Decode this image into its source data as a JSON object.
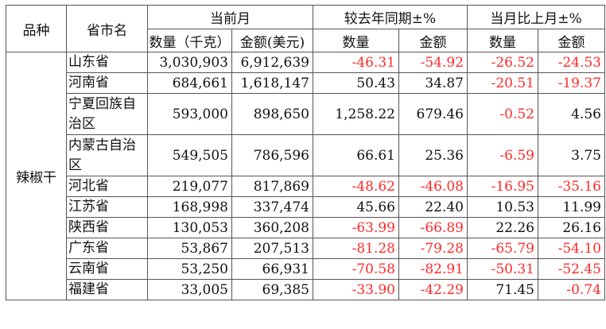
{
  "header": {
    "category_label": "品种",
    "province_label": "省市名",
    "group_current": "当前月",
    "group_yoy": "较去年同期±%",
    "group_mom": "当月比上月±%",
    "sub_qty_kg": "数量（千克）",
    "sub_amt_usd": "金额(美元)",
    "sub_qty": "数量",
    "sub_amt": "金额"
  },
  "category": "辣椒干",
  "rows": [
    {
      "province": "山东省",
      "qty": "3,030,903",
      "amt": "6,912,639",
      "yoy_qty": "-46.31",
      "yoy_amt": "-54.92",
      "mom_qty": "-26.52",
      "mom_amt": "-24.53"
    },
    {
      "province": "河南省",
      "qty": "684,661",
      "amt": "1,618,147",
      "yoy_qty": "50.43",
      "yoy_amt": "34.87",
      "mom_qty": "-20.51",
      "mom_amt": "-19.37"
    },
    {
      "province": "宁夏回族自治区",
      "qty": "593,000",
      "amt": "898,650",
      "yoy_qty": "1,258.22",
      "yoy_amt": "679.46",
      "mom_qty": "-0.52",
      "mom_amt": "4.56"
    },
    {
      "province": "内蒙古自治区",
      "qty": "549,505",
      "amt": "786,596",
      "yoy_qty": "66.61",
      "yoy_amt": "25.36",
      "mom_qty": "-6.59",
      "mom_amt": "3.75"
    },
    {
      "province": "河北省",
      "qty": "219,077",
      "amt": "817,869",
      "yoy_qty": "-48.62",
      "yoy_amt": "-46.08",
      "mom_qty": "-16.95",
      "mom_amt": "-35.16"
    },
    {
      "province": "江苏省",
      "qty": "168,998",
      "amt": "337,474",
      "yoy_qty": "45.66",
      "yoy_amt": "22.40",
      "mom_qty": "10.53",
      "mom_amt": "11.99"
    },
    {
      "province": "陕西省",
      "qty": "130,053",
      "amt": "360,208",
      "yoy_qty": "-63.99",
      "yoy_amt": "-66.89",
      "mom_qty": "22.26",
      "mom_amt": "26.16"
    },
    {
      "province": "广东省",
      "qty": "53,867",
      "amt": "207,513",
      "yoy_qty": "-81.28",
      "yoy_amt": "-79.28",
      "mom_qty": "-65.79",
      "mom_amt": "-54.10"
    },
    {
      "province": "云南省",
      "qty": "53,250",
      "amt": "66,931",
      "yoy_qty": "-70.58",
      "yoy_amt": "-82.91",
      "mom_qty": "-50.31",
      "mom_amt": "-52.45"
    },
    {
      "province": "福建省",
      "qty": "33,005",
      "amt": "69,385",
      "yoy_qty": "-33.90",
      "yoy_amt": "-42.29",
      "mom_qty": "71.45",
      "mom_amt": "-0.74"
    }
  ],
  "colors": {
    "negative": "#ff2a2a",
    "positive": "#111111",
    "border": "#555555"
  }
}
